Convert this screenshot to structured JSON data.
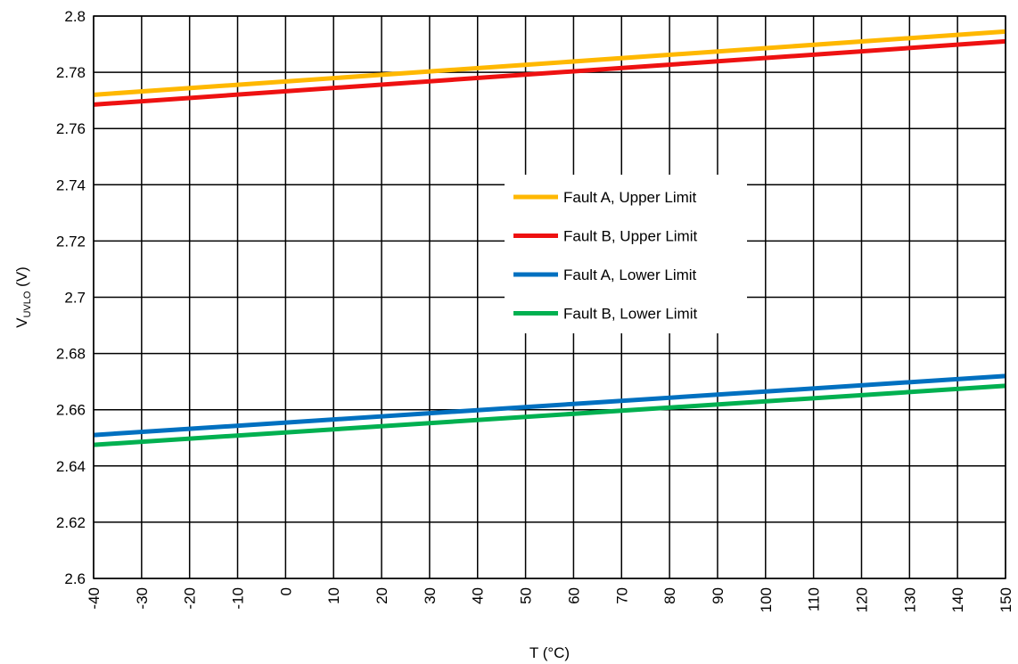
{
  "chart_data": {
    "type": "line",
    "title": "",
    "xlabel": "T (°C)",
    "ylabel": {
      "main": "V",
      "sub": "UVLO",
      "suffix": " (V)"
    },
    "xlim": [
      -40,
      150
    ],
    "ylim": [
      2.6,
      2.8
    ],
    "x_ticks": [
      -40,
      -30,
      -20,
      -10,
      0,
      10,
      20,
      30,
      40,
      50,
      60,
      70,
      80,
      90,
      100,
      110,
      120,
      130,
      140,
      150
    ],
    "y_ticks": [
      2.6,
      2.62,
      2.64,
      2.66,
      2.68,
      2.7,
      2.72,
      2.74,
      2.76,
      2.78,
      2.8
    ],
    "y_tick_labels": [
      "2.6",
      "2.62",
      "2.64",
      "2.66",
      "2.68",
      "2.7",
      "2.72",
      "2.74",
      "2.76",
      "2.78",
      "2.8"
    ],
    "grid": true,
    "legend_position": "center-right",
    "series": [
      {
        "name": "Fault A, Upper Limit",
        "color": "#FFB800",
        "x": [
          -40,
          150
        ],
        "y": [
          2.772,
          2.7945
        ]
      },
      {
        "name": "Fault B, Upper Limit",
        "color": "#EE1111",
        "x": [
          -40,
          150
        ],
        "y": [
          2.7685,
          2.791
        ]
      },
      {
        "name": "Fault A, Lower Limit",
        "color": "#0070C0",
        "x": [
          -40,
          150
        ],
        "y": [
          2.651,
          2.672
        ]
      },
      {
        "name": "Fault B, Lower Limit",
        "color": "#00B050",
        "x": [
          -40,
          150
        ],
        "y": [
          2.6475,
          2.6685
        ]
      }
    ]
  }
}
